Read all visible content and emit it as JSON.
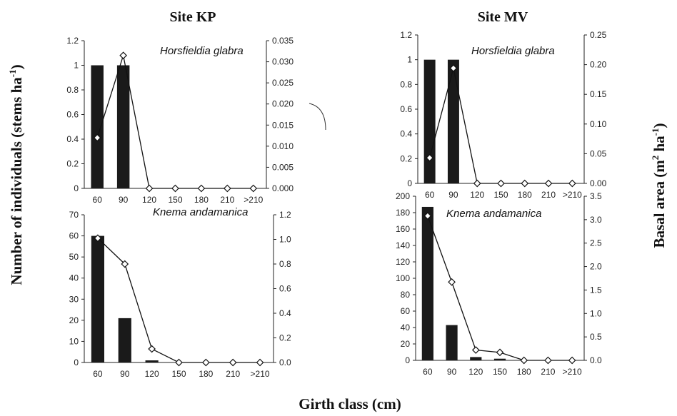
{
  "figure": {
    "xlabel": "Girth class (cm)",
    "ylabel_left": "Number of individuals (stems ha",
    "ylabel_left_sup": "-1",
    "ylabel_left_end": ")",
    "ylabel_right": "Basal area (m",
    "ylabel_right_sup1": "2",
    "ylabel_right_mid": " ha",
    "ylabel_right_sup2": "-1",
    "ylabel_right_end": ")"
  },
  "sites": [
    {
      "id": "kp",
      "title": "Site KP"
    },
    {
      "id": "mv",
      "title": "Site MV"
    }
  ],
  "chart_data": [
    {
      "id": "kp-hg",
      "type": "bar",
      "species": "Horsfieldia glabra",
      "categories": [
        "60",
        "90",
        "120",
        "150",
        "180",
        "210",
        ">210"
      ],
      "left_axis": {
        "ylim": [
          0,
          1.2
        ],
        "ticks": [
          "0",
          "0.2",
          "0.4",
          "0.6",
          "0.8",
          "1",
          "1.2"
        ]
      },
      "right_axis": {
        "ylim": [
          0,
          0.035
        ],
        "ticks": [
          "0.000",
          "0.005",
          "0.010",
          "0.015",
          "0.020",
          "0.025",
          "0.030",
          "0.035"
        ]
      },
      "series": [
        {
          "kind": "bar",
          "axis": "left",
          "color": "#1a1a1a",
          "values": [
            1,
            1,
            0,
            0,
            0,
            0,
            0
          ]
        },
        {
          "kind": "line",
          "axis": "right",
          "marker": "diamond",
          "color": "#111111",
          "values": [
            0.012,
            0.0315,
            0,
            0,
            0,
            0,
            0
          ]
        }
      ]
    },
    {
      "id": "mv-hg",
      "type": "bar",
      "species": "Horsfieldia glabra",
      "categories": [
        "60",
        "90",
        "120",
        "150",
        "180",
        "210",
        ">210"
      ],
      "left_axis": {
        "ylim": [
          0,
          1.2
        ],
        "ticks": [
          "0",
          "0.2",
          "0.4",
          "0.6",
          "0.8",
          "1",
          "1.2"
        ]
      },
      "right_axis": {
        "ylim": [
          0,
          0.25
        ],
        "ticks": [
          "0.00",
          "0.05",
          "0.10",
          "0.15",
          "0.20",
          "0.25"
        ]
      },
      "series": [
        {
          "kind": "bar",
          "axis": "left",
          "color": "#1a1a1a",
          "values": [
            1,
            1,
            0,
            0,
            0,
            0,
            0
          ]
        },
        {
          "kind": "line",
          "axis": "right",
          "marker": "diamond",
          "color": "#111111",
          "values": [
            0.043,
            0.194,
            0,
            0,
            0,
            0,
            0
          ]
        }
      ]
    },
    {
      "id": "kp-ka",
      "type": "bar",
      "species": "Knema andamanica",
      "categories": [
        "60",
        "90",
        "120",
        "150",
        "180",
        "210",
        ">210"
      ],
      "left_axis": {
        "ylim": [
          0,
          70
        ],
        "ticks": [
          "0",
          "10",
          "20",
          "30",
          "40",
          "50",
          "60",
          "70"
        ]
      },
      "right_axis": {
        "ylim": [
          0,
          1.2
        ],
        "ticks": [
          "0.0",
          "0.2",
          "0.4",
          "0.6",
          "0.8",
          "1.0",
          "1.2"
        ]
      },
      "series": [
        {
          "kind": "bar",
          "axis": "left",
          "color": "#1a1a1a",
          "values": [
            60,
            21,
            1,
            0,
            0,
            0,
            0
          ]
        },
        {
          "kind": "line",
          "axis": "right",
          "marker": "diamond",
          "color": "#111111",
          "values": [
            1.01,
            0.8,
            0.11,
            0,
            0,
            0,
            0
          ]
        }
      ]
    },
    {
      "id": "mv-ka",
      "type": "bar",
      "species": "Knema andamanica",
      "categories": [
        "60",
        "90",
        "120",
        "150",
        "180",
        "210",
        ">210"
      ],
      "left_axis": {
        "ylim": [
          0,
          200
        ],
        "ticks": [
          "0",
          "20",
          "40",
          "60",
          "80",
          "100",
          "120",
          "140",
          "160",
          "180",
          "200"
        ]
      },
      "right_axis": {
        "ylim": [
          0,
          3.5
        ],
        "ticks": [
          "0.0",
          "0.5",
          "1.0",
          "1.5",
          "2.0",
          "2.5",
          "3.0",
          "3.5"
        ]
      },
      "series": [
        {
          "kind": "bar",
          "axis": "left",
          "color": "#1a1a1a",
          "values": [
            187,
            43,
            4,
            2,
            0,
            0,
            0
          ]
        },
        {
          "kind": "line",
          "axis": "right",
          "marker": "diamond",
          "color": "#111111",
          "values": [
            3.08,
            1.67,
            0.22,
            0.17,
            0,
            0,
            0
          ]
        }
      ]
    }
  ]
}
